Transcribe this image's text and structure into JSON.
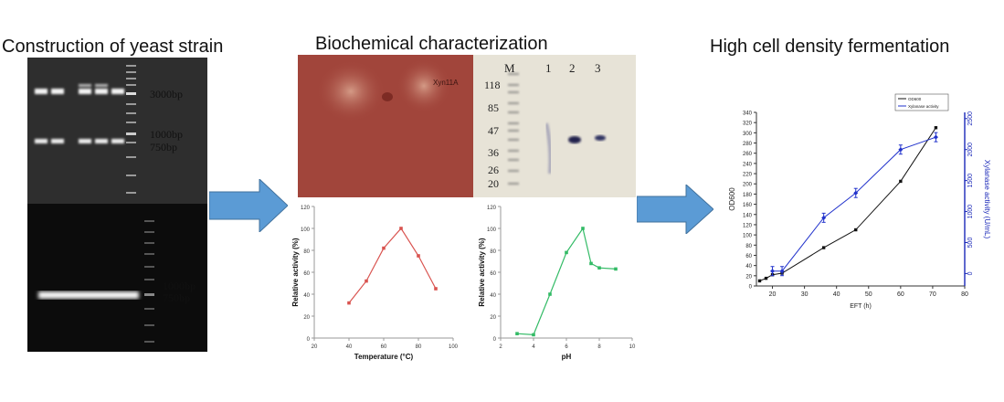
{
  "panels": {
    "left": {
      "title": "Construction of yeast strain",
      "gel_top": {
        "labels": [
          "3000bp",
          "1000bp",
          "750bp"
        ]
      },
      "gel_bottom": {
        "labels": [
          "1000bp",
          "750bp"
        ]
      }
    },
    "middle": {
      "title": "Biochemical characterization",
      "plate_label": "Xyn11A",
      "sds_page": {
        "lane_labels": [
          "M",
          "1",
          "2",
          "3"
        ],
        "marker_labels": [
          "118",
          "85",
          "47",
          "36",
          "26",
          "20"
        ]
      }
    },
    "right": {
      "title": "High cell density fermentation"
    }
  },
  "chart_data": [
    {
      "type": "line",
      "xlabel": "Temperature (°C)",
      "ylabel": "Relative activity (%)",
      "xlim": [
        20,
        100
      ],
      "ylim": [
        0,
        120
      ],
      "xticks": [
        "20",
        "40",
        "60",
        "80",
        "100"
      ],
      "yticks": [
        "0",
        "20",
        "40",
        "60",
        "80",
        "100",
        "120"
      ],
      "x": [
        40,
        50,
        60,
        70,
        80,
        90
      ],
      "series": [
        {
          "values": [
            32,
            52,
            82,
            100,
            75,
            45
          ],
          "color": "#d9534f"
        }
      ]
    },
    {
      "type": "line",
      "xlabel": "pH",
      "ylabel": "Relative activity (%)",
      "xlim": [
        2,
        10
      ],
      "ylim": [
        0,
        120
      ],
      "xticks": [
        "2",
        "4",
        "6",
        "8",
        "10"
      ],
      "yticks": [
        "0",
        "20",
        "40",
        "60",
        "80",
        "100",
        "120"
      ],
      "x": [
        3,
        4,
        5,
        6,
        7,
        7.5,
        8,
        9
      ],
      "series": [
        {
          "values": [
            4,
            3,
            40,
            78,
            100,
            68,
            64,
            63
          ],
          "color": "#33bb66"
        }
      ]
    },
    {
      "type": "line",
      "xlabel": "EFT (h)",
      "ylabel": "OD600",
      "y2label": "Xylanase activity (U/mL)",
      "xlim": [
        15,
        80
      ],
      "ylim": [
        0,
        340
      ],
      "y2lim": [
        -200,
        2600
      ],
      "xticks": [
        "20",
        "30",
        "40",
        "50",
        "60",
        "70",
        "80"
      ],
      "yticks": [
        "0",
        "20",
        "40",
        "60",
        "80",
        "100",
        "120",
        "140",
        "160",
        "180",
        "200",
        "220",
        "240",
        "260",
        "280",
        "300",
        "320",
        "340"
      ],
      "y2ticks": [
        "0",
        "500",
        "1000",
        "1500",
        "2000",
        "2500"
      ],
      "legend_position": "top-left",
      "series": [
        {
          "name": "OD600",
          "color": "#111111",
          "axis": "left",
          "x": [
            16,
            18,
            20,
            23,
            36,
            46,
            60,
            71
          ],
          "values": [
            10,
            15,
            22,
            25,
            75,
            110,
            205,
            310
          ]
        },
        {
          "name": "Xylanase activity",
          "color": "#2233cc",
          "axis": "right",
          "x": [
            20,
            23,
            36,
            46,
            60,
            71
          ],
          "values": [
            40,
            40,
            900,
            1300,
            2000,
            2200
          ]
        }
      ]
    }
  ]
}
